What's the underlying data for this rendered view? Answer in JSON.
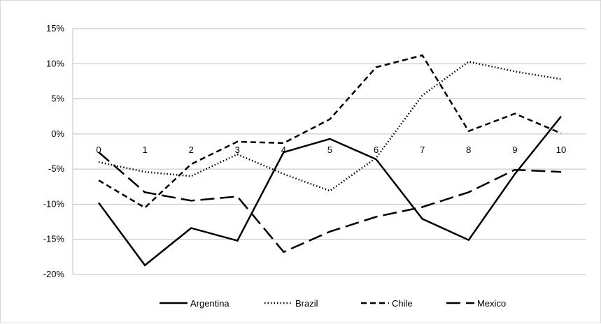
{
  "chart_data": {
    "type": "line",
    "title": "",
    "xlabel": "",
    "ylabel": "",
    "x": [
      0,
      1,
      2,
      3,
      4,
      5,
      6,
      7,
      8,
      9,
      10
    ],
    "x_tick_labels": [
      "0",
      "1",
      "2",
      "3",
      "4",
      "5",
      "6",
      "7",
      "8",
      "9",
      "10"
    ],
    "y_tick_labels": [
      "15%",
      "10%",
      "5%",
      "0%",
      "-5%",
      "-10%",
      "-15%",
      "-20%"
    ],
    "ylim": [
      -0.2,
      0.15
    ],
    "y_format": "percent",
    "grid": true,
    "legend_position": "bottom",
    "series": [
      {
        "name": "Argentina",
        "style": "solid",
        "color": "#000000",
        "values": [
          -0.098,
          -0.187,
          -0.134,
          -0.152,
          -0.026,
          -0.007,
          -0.036,
          -0.121,
          -0.151,
          -0.057,
          0.025
        ]
      },
      {
        "name": "Brazil",
        "style": "dotted",
        "color": "#000000",
        "values": [
          -0.04,
          -0.054,
          -0.06,
          -0.029,
          -0.057,
          -0.081,
          -0.034,
          0.055,
          0.103,
          0.089,
          0.078
        ]
      },
      {
        "name": "Chile",
        "style": "short-dash",
        "color": "#000000",
        "values": [
          -0.066,
          -0.105,
          -0.043,
          -0.011,
          -0.013,
          0.021,
          0.095,
          0.112,
          0.004,
          0.029,
          0.001
        ]
      },
      {
        "name": "Mexico",
        "style": "long-dash",
        "color": "#000000",
        "values": [
          -0.026,
          -0.083,
          -0.095,
          -0.089,
          -0.168,
          -0.139,
          -0.118,
          -0.104,
          -0.083,
          -0.051,
          -0.054
        ]
      }
    ]
  }
}
